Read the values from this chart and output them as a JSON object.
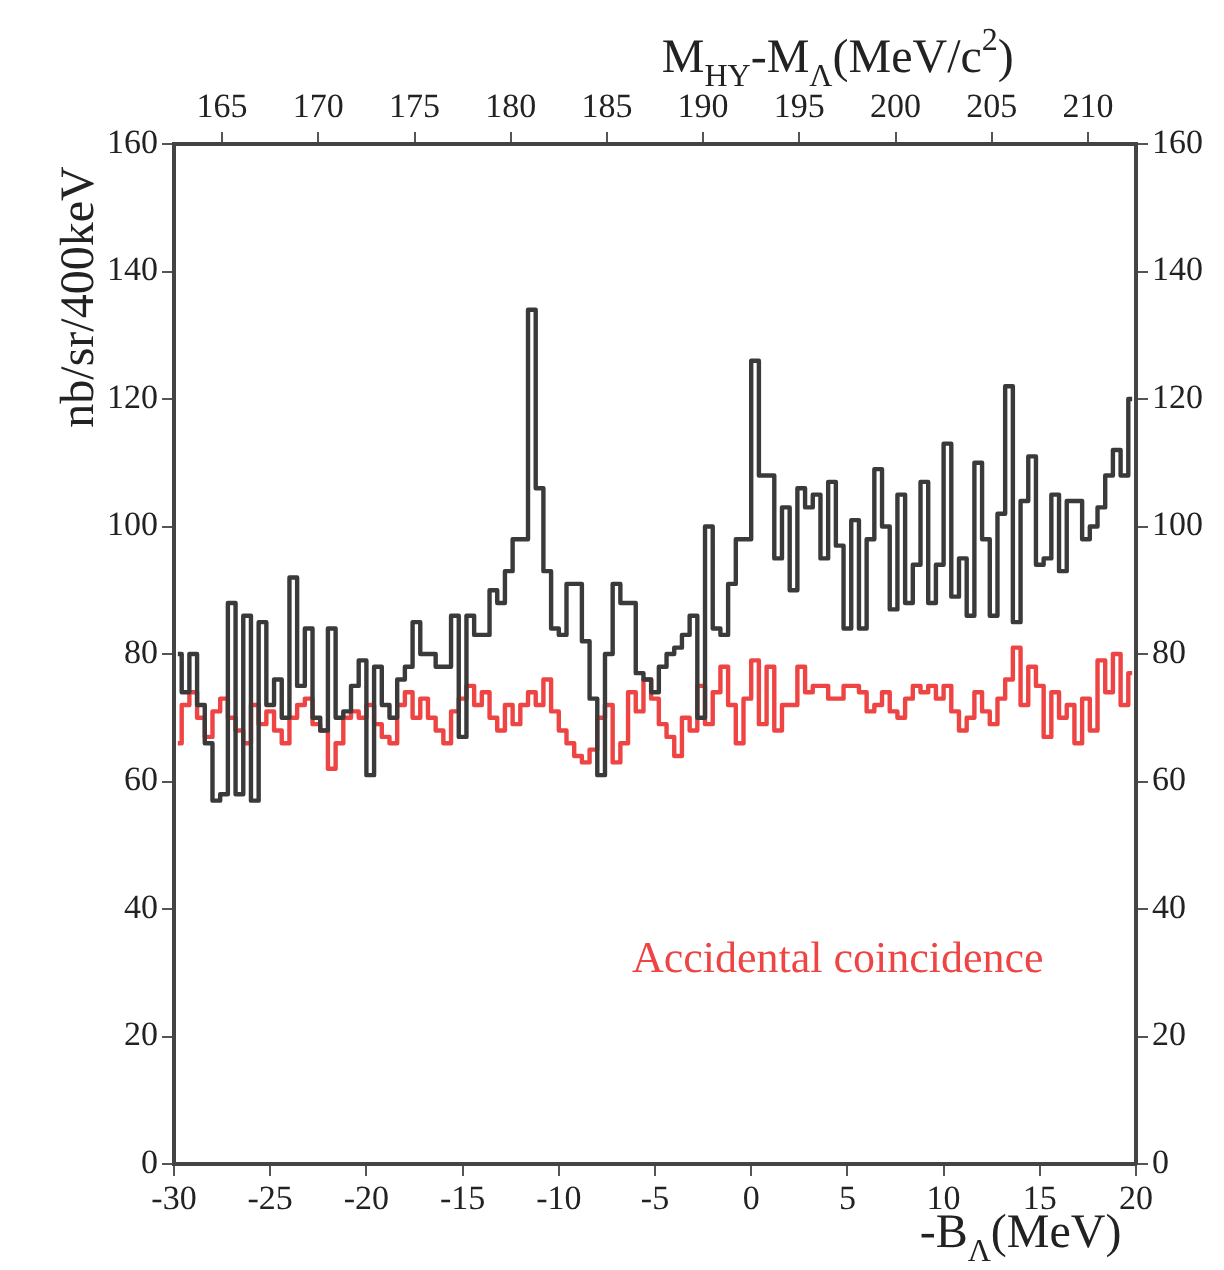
{
  "chart_data": {
    "type": "step",
    "xlabel": "-B$_{Λ}$(MeV)",
    "x2label": "M$_{HY}$-M$_{Λ}$(MeV/c$^{2}$)",
    "ylabel": "nb/sr/400keV",
    "x": [
      -29.8,
      -29.4,
      -29,
      -28.6,
      -28.2,
      -27.8,
      -27.4,
      -27,
      -26.6,
      -26.2,
      -25.8,
      -25.4,
      -25,
      -24.6,
      -24.2,
      -23.8,
      -23.4,
      -23,
      -22.6,
      -22.2,
      -21.8,
      -21.4,
      -21,
      -20.6,
      -20.2,
      -19.8,
      -19.4,
      -19,
      -18.6,
      -18.2,
      -17.8,
      -17.4,
      -17,
      -16.6,
      -16.2,
      -15.8,
      -15.4,
      -15,
      -14.6,
      -14.2,
      -13.8,
      -13.4,
      -13,
      -12.6,
      -12.2,
      -11.8,
      -11.4,
      -11,
      -10.6,
      -10.2,
      -9.8,
      -9.4,
      -9,
      -8.6,
      -8.2,
      -7.8,
      -7.4,
      -7,
      -6.6,
      -6.2,
      -5.8,
      -5.4,
      -5,
      -4.6,
      -4.2,
      -3.8,
      -3.4,
      -3,
      -2.6,
      -2.2,
      -1.8,
      -1.4,
      -1,
      -0.6,
      -0.2,
      0.2,
      0.6,
      1,
      1.4,
      1.8,
      2.2,
      2.6,
      3,
      3.4,
      3.8,
      4.2,
      4.6,
      5,
      5.4,
      5.8,
      6.2,
      6.6,
      7,
      7.4,
      7.8,
      8.2,
      8.6,
      9,
      9.4,
      9.8,
      10.2,
      10.6,
      11,
      11.4,
      11.8,
      12.2,
      12.6,
      13,
      13.4,
      13.8,
      14.2,
      14.6,
      15,
      15.4,
      15.8,
      16.2,
      16.6,
      17,
      17.4,
      17.8,
      18.2,
      18.6,
      19,
      19.4,
      19.8
    ],
    "series": [
      {
        "color": "#3a3a3a",
        "values": [
          80,
          74,
          80,
          72,
          66,
          57,
          58,
          88,
          58,
          86,
          57,
          85,
          72,
          76,
          70,
          92,
          75,
          84,
          70,
          68,
          84,
          70,
          71,
          75,
          79,
          61,
          78,
          72,
          70,
          76,
          78,
          85,
          80,
          80,
          78,
          78,
          86,
          67,
          86,
          83,
          83,
          90,
          88,
          93,
          98,
          98,
          134,
          106,
          93,
          84,
          83,
          91,
          91,
          82,
          73,
          61,
          80,
          91,
          88,
          88,
          77,
          76,
          74,
          78,
          80,
          81,
          83,
          86,
          70,
          100,
          84,
          83,
          91,
          98,
          98,
          126,
          108,
          108,
          95,
          103,
          90,
          106,
          103,
          105,
          95,
          107,
          97,
          84,
          101,
          84,
          98,
          109,
          100,
          87,
          105,
          88,
          94,
          107,
          88,
          94,
          113,
          89,
          95,
          86,
          110,
          98,
          86,
          102,
          122,
          85,
          104,
          111,
          94,
          95,
          105,
          93,
          104,
          104,
          98,
          100,
          103,
          108,
          112,
          108,
          120
        ]
      },
      {
        "name": "Accidental coincidence",
        "color": "#ee4444",
        "values": [
          66,
          72,
          74,
          70,
          67,
          71,
          73,
          70,
          68,
          66,
          72,
          69,
          71,
          68,
          66,
          70,
          72,
          73,
          69,
          68,
          62,
          66,
          70,
          71,
          70,
          72,
          69,
          67,
          66,
          72,
          74,
          70,
          73,
          70,
          68,
          66,
          71,
          73,
          75,
          72,
          74,
          70,
          68,
          72,
          69,
          72,
          74,
          72,
          76,
          71,
          68,
          66,
          64,
          63,
          65,
          70,
          72,
          63,
          66,
          74,
          71,
          76,
          73,
          69,
          67,
          64,
          70,
          68,
          75,
          69,
          74,
          78,
          72,
          66,
          73,
          79,
          69,
          78,
          68,
          72,
          72,
          78,
          74,
          75,
          75,
          73,
          73,
          75,
          75,
          74,
          71,
          72,
          74,
          71,
          70,
          73,
          75,
          74,
          75,
          73,
          75,
          71,
          68,
          70,
          74,
          71,
          69,
          73,
          76,
          81,
          72,
          78,
          75,
          67,
          74,
          70,
          72,
          66,
          73,
          68,
          79,
          74,
          80,
          72,
          77
        ]
      }
    ],
    "xlim": [
      -30,
      20
    ],
    "xticks": [
      -30,
      -25,
      -20,
      -15,
      -10,
      -5,
      0,
      5,
      10,
      15,
      20
    ],
    "x2lim": [
      162.5,
      212.5
    ],
    "x2ticks": [
      165,
      170,
      175,
      180,
      185,
      190,
      195,
      200,
      205,
      210
    ],
    "ylim": [
      0,
      160
    ],
    "yticks": [
      0,
      20,
      40,
      60,
      80,
      100,
      120,
      140,
      160
    ],
    "y2lim": [
      0,
      160
    ],
    "y2ticks": [
      0,
      20,
      40,
      60,
      80,
      100,
      120,
      140,
      160
    ],
    "grid": false,
    "legend": false
  }
}
